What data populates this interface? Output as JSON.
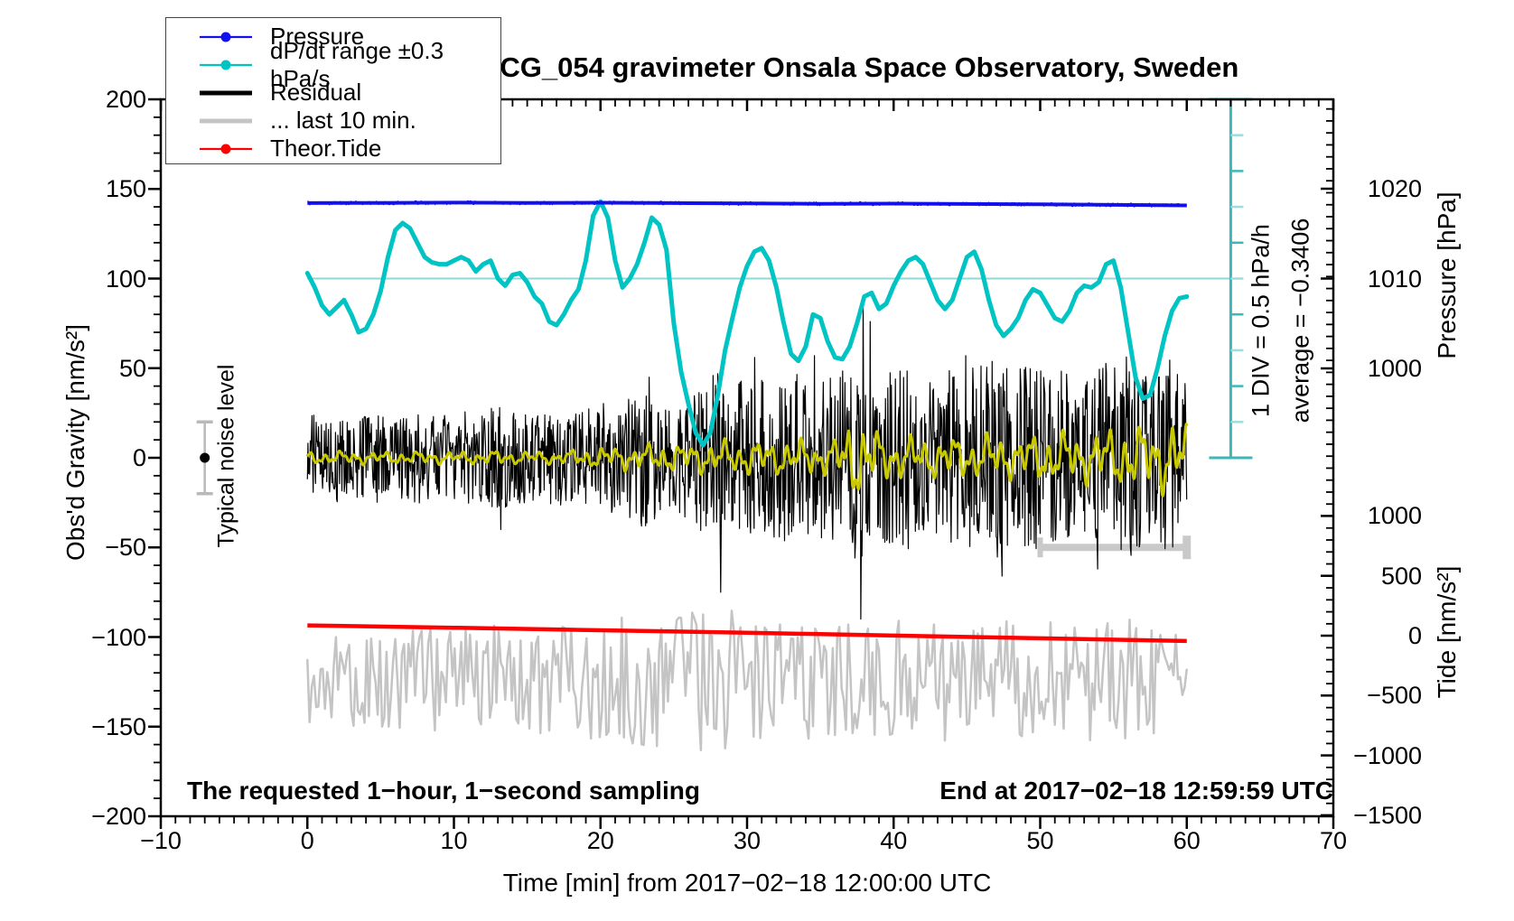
{
  "title": "SCG_054 gravimeter Onsala Space Observatory, Sweden",
  "legend": {
    "items": [
      {
        "label": "Pressure",
        "color": "#1310ee",
        "swatch": "line-dot"
      },
      {
        "label": "dP/dt range ±0.3 hPa/s",
        "color": "#00c3c3",
        "swatch": "line-dot"
      },
      {
        "label": "Residual",
        "color": "#000000",
        "swatch": "line-thick"
      },
      {
        "label": "... last 10 min.",
        "color": "#c4c4c4",
        "swatch": "line-thick"
      },
      {
        "label": "Theor.Tide",
        "color": "#ff0000",
        "swatch": "line-dot"
      }
    ]
  },
  "annotations": {
    "sampling_note": "The requested 1−hour, 1−second sampling",
    "end_note": "End at 2017−02−18 12:59:59 UTC",
    "div_note": "1 DIV = 0.5 hPa/h",
    "average_note": "average = −0.3406",
    "noise_note": "Typical noise level"
  },
  "colors": {
    "pressure": "#1310ee",
    "dpdt": "#00c3c3",
    "dpdt_ref_line": "#8fd8d8",
    "dpdt_ruler": "#3cb8b8",
    "dpdt_ruler_minor": "#9adede",
    "residual": "#000000",
    "residual_smoothed": "#c9c900",
    "last10": "#c4c4c4",
    "tide": "#ff0000",
    "frame": "#000000",
    "noise_marker_bar": "#b9b9b9",
    "last10_bar": "#c9c9c9"
  },
  "chart_data": {
    "type": "line",
    "title": "SCG_054 gravimeter Onsala Space Observatory, Sweden",
    "x_axis": {
      "label": "Time [min] from 2017−02−18 12:00:00 UTC",
      "range": [
        -10,
        70
      ],
      "major_tick_step": 10,
      "minor_tick_step": 1,
      "tick_values": [
        -10,
        0,
        10,
        20,
        30,
        40,
        50,
        60,
        70
      ],
      "tick_labels": [
        "−10",
        "0",
        "10",
        "20",
        "30",
        "40",
        "50",
        "60",
        "70"
      ]
    },
    "y_axis_left": {
      "label": "Obs'd Gravity [nm/s²]",
      "range": [
        -200,
        200
      ],
      "major_tick_step": 50,
      "minor_tick_step": 10,
      "tick_values": [
        200,
        150,
        100,
        50,
        0,
        -50,
        -100,
        -150,
        -200
      ],
      "tick_labels": [
        "200",
        "150",
        "100",
        "50",
        "0",
        "−50",
        "−100",
        "−150",
        "−200"
      ]
    },
    "y_axis_right_pressure": {
      "label": "Pressure [hPa]",
      "tick_values": [
        1020,
        1010,
        1000
      ],
      "tick_labels": [
        "1020",
        "1010",
        "1000"
      ]
    },
    "y_axis_right_tide": {
      "label": "Tide [nm/s²]",
      "minor_tick_step": 100,
      "tick_values": [
        1000,
        500,
        0,
        -500,
        -1000,
        -1500
      ],
      "tick_labels": [
        "1000",
        "500",
        "0",
        "−500",
        "−1000",
        "−1500"
      ]
    },
    "series": [
      {
        "id": "pressure",
        "name": "Pressure",
        "color": "#1310ee",
        "width": 4,
        "axis": "pressure_hPa",
        "x_start": 0,
        "x_step": 5,
        "values": [
          1018.4,
          1018.42,
          1018.45,
          1018.42,
          1018.44,
          1018.4,
          1018.36,
          1018.32,
          1018.34,
          1018.3,
          1018.26,
          1018.2,
          1018.14
        ]
      },
      {
        "id": "dpdt",
        "name": "dP/dt range ±0.3 hPa/s",
        "color": "#00c3c3",
        "width": 5,
        "axis": "gravity_left",
        "x_start": 0,
        "x_step": 0.5,
        "reference_value": 100,
        "values": [
          103,
          95,
          85,
          80,
          84,
          88,
          80,
          70,
          72,
          80,
          93,
          112,
          127,
          131,
          128,
          120,
          112,
          109,
          108,
          108,
          110,
          112,
          110,
          104,
          108,
          110,
          100,
          96,
          102,
          103,
          98,
          90,
          86,
          76,
          74,
          80,
          88,
          94,
          110,
          135,
          143,
          134,
          110,
          95,
          100,
          108,
          120,
          134,
          130,
          116,
          75,
          48,
          30,
          14,
          7,
          14,
          35,
          60,
          78,
          95,
          107,
          115,
          117,
          110,
          95,
          75,
          58,
          54,
          62,
          80,
          78,
          65,
          56,
          55,
          62,
          75,
          90,
          92,
          83,
          86,
          96,
          104,
          110,
          112,
          108,
          98,
          88,
          83,
          88,
          100,
          112,
          115,
          105,
          88,
          74,
          68,
          72,
          78,
          88,
          94,
          92,
          85,
          78,
          76,
          82,
          92,
          96,
          95,
          98,
          108,
          110,
          95,
          70,
          45,
          33,
          35,
          50,
          68,
          82,
          89,
          90
        ]
      },
      {
        "id": "residual",
        "name": "Residual",
        "color": "#000000",
        "width": 1.2,
        "axis": "gravity_left",
        "center": 0,
        "envelope_step": 1,
        "envelope": [
          26,
          25,
          26,
          25,
          26,
          27,
          25,
          26,
          27,
          26,
          27,
          28,
          26,
          32,
          28,
          27,
          26,
          28,
          27,
          28,
          33,
          33,
          36,
          42,
          36,
          31,
          36,
          46,
          50,
          44,
          50,
          46,
          48,
          52,
          46,
          48,
          50,
          60,
          60,
          50,
          50,
          55,
          46,
          50,
          56,
          52,
          54,
          62,
          50,
          54,
          54,
          50,
          55,
          46,
          58,
          54,
          62,
          54,
          55,
          58,
          46
        ],
        "spikes": [
          {
            "t": 13.2,
            "v": -40
          },
          {
            "t": 23.3,
            "v": 45
          },
          {
            "t": 28.2,
            "v": -75
          },
          {
            "t": 30.5,
            "v": 56
          },
          {
            "t": 34.6,
            "v": 57
          },
          {
            "t": 37.75,
            "v": -90
          },
          {
            "t": 37.9,
            "v": 89
          },
          {
            "t": 38.4,
            "v": 76
          },
          {
            "t": 44.9,
            "v": 57
          },
          {
            "t": 47.4,
            "v": -66
          },
          {
            "t": 53.9,
            "v": -62
          }
        ]
      },
      {
        "id": "residual_smoothed",
        "name": "Residual low-pass (yellow overlay, not in legend)",
        "color": "#c9c900",
        "width": 3,
        "axis": "gravity_left",
        "center": 0,
        "envelope_step": 1,
        "envelope": [
          4,
          4,
          4,
          4,
          4,
          4,
          4,
          4,
          4,
          4,
          4,
          4,
          4,
          5,
          4,
          4,
          4,
          4,
          5,
          6,
          7,
          7,
          8,
          8,
          9,
          9,
          9,
          10,
          11,
          10,
          11,
          11,
          11,
          12,
          11,
          11,
          12,
          25,
          24,
          16,
          13,
          14,
          12,
          13,
          14,
          13,
          14,
          15,
          13,
          14,
          16,
          16,
          17,
          15,
          19,
          18,
          22,
          20,
          21,
          23,
          21
        ]
      },
      {
        "id": "last10",
        "name": "... last 10 min.",
        "color": "#c4c4c4",
        "width": 2.5,
        "axis": "gravity_left",
        "center": -124,
        "amplitude_step": 5,
        "amplitude": [
          24,
          27,
          30,
          31,
          34,
          38,
          42,
          32,
          34,
          35,
          33,
          35,
          30
        ]
      },
      {
        "id": "tide",
        "name": "Theor.Tide",
        "color": "#ff0000",
        "width": 4.5,
        "axis": "gravity_left",
        "x_start": 0,
        "x_step": 10,
        "values": [
          -93.5,
          -94.8,
          -96.2,
          -97.6,
          -99.2,
          -100.7,
          -102.2
        ]
      }
    ],
    "markers": {
      "noise_marker": {
        "t": -7,
        "value": 0,
        "error": 20
      },
      "last10_bar": {
        "t_start": 50,
        "t_end": 60,
        "value": -50
      },
      "dpdt_ruler": {
        "t": 63,
        "top_value": 200,
        "bottom_value": 0,
        "divisions": 10,
        "reference_value": 100
      }
    }
  }
}
